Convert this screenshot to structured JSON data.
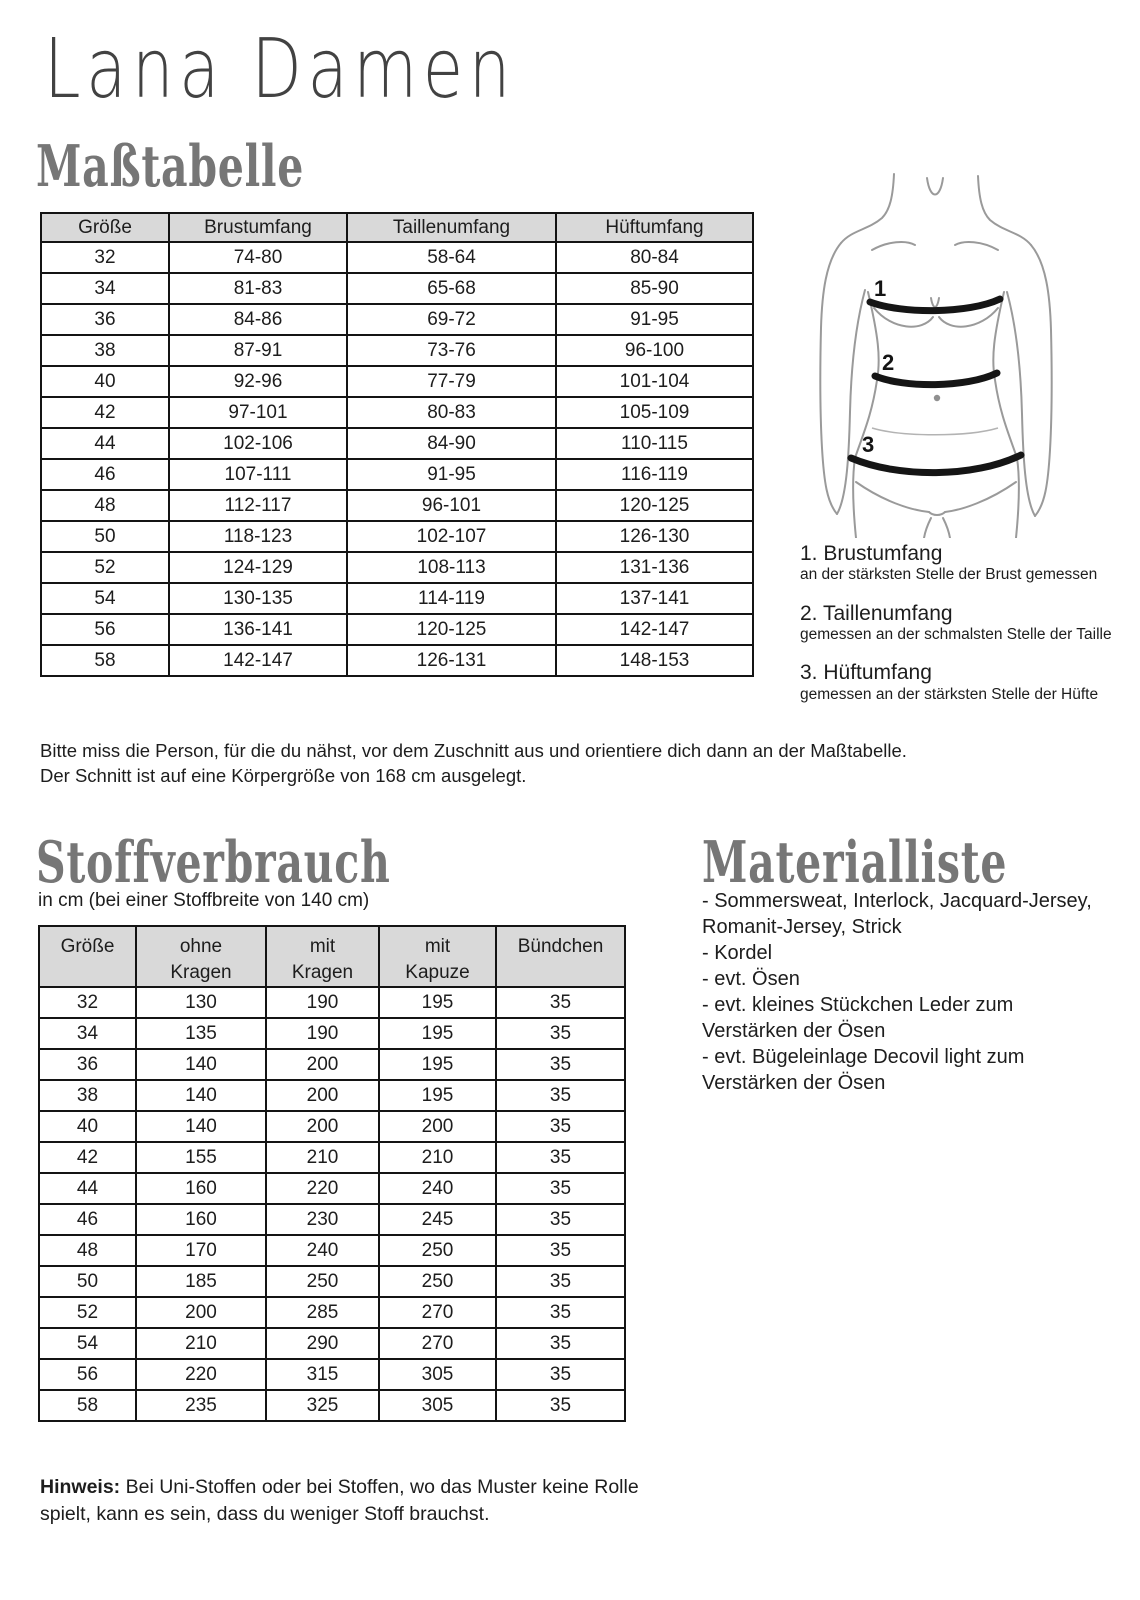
{
  "brand": "Lana Damen",
  "masstabelle": {
    "title": "Maßtabelle",
    "table": {
      "headers": [
        "Größe",
        "Brustumfang",
        "Taillenumfang",
        "Hüftumfang"
      ],
      "rows": [
        [
          "32",
          "74-80",
          "58-64",
          "80-84"
        ],
        [
          "34",
          "81-83",
          "65-68",
          "85-90"
        ],
        [
          "36",
          "84-86",
          "69-72",
          "91-95"
        ],
        [
          "38",
          "87-91",
          "73-76",
          "96-100"
        ],
        [
          "40",
          "92-96",
          "77-79",
          "101-104"
        ],
        [
          "42",
          "97-101",
          "80-83",
          "105-109"
        ],
        [
          "44",
          "102-106",
          "84-90",
          "110-115"
        ],
        [
          "46",
          "107-111",
          "91-95",
          "116-119"
        ],
        [
          "48",
          "112-117",
          "96-101",
          "120-125"
        ],
        [
          "50",
          "118-123",
          "102-107",
          "126-130"
        ],
        [
          "52",
          "124-129",
          "108-113",
          "131-136"
        ],
        [
          "54",
          "130-135",
          "114-119",
          "137-141"
        ],
        [
          "56",
          "136-141",
          "120-125",
          "142-147"
        ],
        [
          "58",
          "142-147",
          "126-131",
          "148-153"
        ]
      ]
    },
    "figure_labels": {
      "bust": "1",
      "waist": "2",
      "hip": "3"
    },
    "annotations": [
      {
        "title": "1. Brustumfang",
        "desc": "an der stärksten Stelle der Brust gemessen"
      },
      {
        "title": "2. Taillenumfang",
        "desc": "gemessen an der schmalsten Stelle der Taille"
      },
      {
        "title": "3. Hüftumfang",
        "desc": "gemessen an der stärksten Stelle der Hüfte"
      }
    ],
    "note_line1": "Bitte miss die Person, für die du nähst, vor dem Zuschnitt aus und orientiere dich dann an der Maßtabelle.",
    "note_line2": "Der Schnitt ist auf eine Körpergröße von 168 cm ausgelegt."
  },
  "stoffverbrauch": {
    "title": "Stoffverbrauch",
    "subtitle": "in cm (bei einer Stoffbreite von 140 cm)",
    "table": {
      "headers": [
        "Größe",
        "ohne\nKragen",
        "mit\nKragen",
        "mit\nKapuze",
        "Bündchen"
      ],
      "rows": [
        [
          "32",
          "130",
          "190",
          "195",
          "35"
        ],
        [
          "34",
          "135",
          "190",
          "195",
          "35"
        ],
        [
          "36",
          "140",
          "200",
          "195",
          "35"
        ],
        [
          "38",
          "140",
          "200",
          "195",
          "35"
        ],
        [
          "40",
          "140",
          "200",
          "200",
          "35"
        ],
        [
          "42",
          "155",
          "210",
          "210",
          "35"
        ],
        [
          "44",
          "160",
          "220",
          "240",
          "35"
        ],
        [
          "46",
          "160",
          "230",
          "245",
          "35"
        ],
        [
          "48",
          "170",
          "240",
          "250",
          "35"
        ],
        [
          "50",
          "185",
          "250",
          "250",
          "35"
        ],
        [
          "52",
          "200",
          "285",
          "270",
          "35"
        ],
        [
          "54",
          "210",
          "290",
          "270",
          "35"
        ],
        [
          "56",
          "220",
          "315",
          "305",
          "35"
        ],
        [
          "58",
          "235",
          "325",
          "305",
          "35"
        ]
      ]
    },
    "hinweis_label": "Hinweis:",
    "hinweis_text": " Bei Uni-Stoffen oder bei Stoffen, wo das Muster keine Rolle spielt, kann es sein, dass du weniger Stoff brauchst."
  },
  "materialliste": {
    "title": "Materialliste",
    "items": [
      "- Sommersweat, Interlock, Jacquard-Jersey, Romanit-Jersey, Strick",
      "- Kordel",
      "- evt. Ösen",
      "- evt. kleines Stückchen Leder zum Verstärken der Ösen",
      "- evt. Bügeleinlage Decovil light zum Verstärken der Ösen"
    ]
  },
  "colors": {
    "heading_gray": "#767676",
    "title_gray": "#424242",
    "table_header_bg": "#d9d9d9",
    "table_border": "#141414",
    "body_text": "#1d1d1d",
    "figure_line": "#9a9a9a",
    "measure_band": "#151515"
  }
}
